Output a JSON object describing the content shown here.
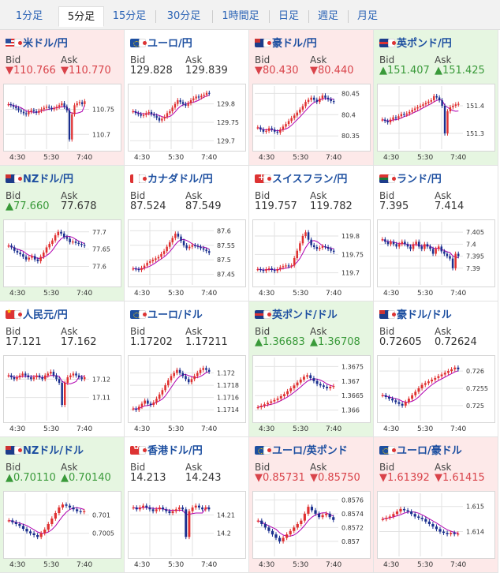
{
  "timeframes": [
    {
      "label": "1分足",
      "active": false
    },
    {
      "label": "5分足",
      "active": true
    },
    {
      "label": "15分足",
      "active": false
    },
    {
      "label": "30分足",
      "active": false
    },
    {
      "label": "1時間足",
      "active": false
    },
    {
      "label": "日足",
      "active": false
    },
    {
      "label": "週足",
      "active": false
    },
    {
      "label": "月足",
      "active": false
    }
  ],
  "labels": {
    "bid": "Bid",
    "ask": "Ask"
  },
  "colors": {
    "up": "#3a9a3a",
    "down": "#d9434a",
    "candle_up": "#e03030",
    "candle_down": "#1a2f8f",
    "ma": "#b000b0"
  },
  "tiles": [
    {
      "pair": "米ドル/円",
      "flag": "us-flag-icon",
      "flag_cls": "us",
      "trend": "down",
      "bid": "▼110.766",
      "ask": "▼110.770",
      "chart_data": {
        "type": "candlestick",
        "y_ticks": [
          "110.75",
          "110.7"
        ],
        "ylim": [
          110.68,
          110.79
        ],
        "x_ticks": [
          "4:30",
          "5:30",
          "7:40"
        ],
        "series": [
          110.76,
          110.758,
          110.755,
          110.752,
          110.748,
          110.745,
          110.742,
          110.74,
          110.745,
          110.748,
          110.746,
          110.743,
          110.747,
          110.75,
          110.753,
          110.755,
          110.753,
          110.75,
          110.752,
          110.755,
          110.758,
          110.762,
          110.755,
          110.748,
          110.69,
          110.74,
          110.758,
          110.762,
          110.764,
          110.76,
          110.766
        ]
      }
    },
    {
      "pair": "ユーロ/円",
      "flag": "eu-flag-icon",
      "flag_cls": "eu",
      "trend": "flat",
      "bid": "129.828",
      "ask": "129.839",
      "chart_data": {
        "type": "candlestick",
        "y_ticks": [
          "129.8",
          "129.75",
          "129.7"
        ],
        "ylim": [
          129.69,
          129.84
        ],
        "x_ticks": [
          "4:30",
          "5:30",
          "7:40"
        ],
        "series": [
          129.78,
          129.775,
          129.772,
          129.768,
          129.77,
          129.775,
          129.778,
          129.772,
          129.768,
          129.762,
          129.755,
          129.76,
          129.765,
          129.775,
          129.78,
          129.79,
          129.8,
          129.81,
          129.805,
          129.8,
          129.795,
          129.802,
          129.81,
          129.815,
          129.82,
          129.818,
          129.822,
          129.825,
          129.83,
          129.828
        ]
      }
    },
    {
      "pair": "豪ドル/円",
      "flag": "au-flag-icon",
      "flag_cls": "au",
      "trend": "down",
      "bid": "▼80.430",
      "ask": "▼80.440",
      "chart_data": {
        "type": "candlestick",
        "y_ticks": [
          "80.45",
          "80.4",
          "80.35"
        ],
        "ylim": [
          80.33,
          80.46
        ],
        "x_ticks": [
          "4:30",
          "5:30",
          "7:40"
        ],
        "series": [
          80.37,
          80.365,
          80.36,
          80.362,
          80.368,
          80.365,
          80.36,
          80.358,
          80.365,
          80.372,
          80.378,
          80.385,
          80.392,
          80.398,
          80.405,
          80.412,
          80.42,
          80.43,
          80.435,
          80.44,
          80.435,
          80.43,
          80.438,
          80.445,
          80.44,
          80.436,
          80.432,
          80.43
        ]
      }
    },
    {
      "pair": "英ポンド/円",
      "flag": "gb-flag-icon",
      "flag_cls": "gb",
      "trend": "up",
      "bid": "▲151.407",
      "ask": "▲151.425",
      "chart_data": {
        "type": "candlestick",
        "y_ticks": [
          "151.4",
          "151.3"
        ],
        "ylim": [
          151.26,
          151.46
        ],
        "x_ticks": [
          "4:30",
          "5:30",
          "7:40"
        ],
        "series": [
          151.35,
          151.345,
          151.34,
          151.35,
          151.358,
          151.355,
          151.362,
          151.37,
          151.368,
          151.372,
          151.378,
          151.385,
          151.39,
          151.395,
          151.4,
          151.405,
          151.41,
          151.415,
          151.42,
          151.435,
          151.43,
          151.42,
          151.4,
          151.3,
          151.38,
          151.395,
          151.4,
          151.405,
          151.407
        ]
      }
    },
    {
      "pair": "NZドル/円",
      "flag": "nz-flag-icon",
      "flag_cls": "nz",
      "trend": "up",
      "bid": "▲77.660",
      "ask": "77.678",
      "chart_data": {
        "type": "candlestick",
        "y_ticks": [
          "77.7",
          "77.65",
          "77.6"
        ],
        "ylim": [
          77.56,
          77.72
        ],
        "x_ticks": [
          "4:30",
          "5:30",
          "7:40"
        ],
        "series": [
          77.66,
          77.655,
          77.645,
          77.64,
          77.635,
          77.628,
          77.62,
          77.625,
          77.63,
          77.62,
          77.615,
          77.628,
          77.64,
          77.655,
          77.665,
          77.675,
          77.69,
          77.7,
          77.695,
          77.685,
          77.68,
          77.67,
          77.672,
          77.668,
          77.665,
          77.662,
          77.66
        ]
      }
    },
    {
      "pair": "カナダドル/円",
      "flag": "ca-flag-icon",
      "flag_cls": "ca",
      "trend": "flat",
      "bid": "87.524",
      "ask": "87.549",
      "chart_data": {
        "type": "candlestick",
        "y_ticks": [
          "87.6",
          "87.55",
          "87.5",
          "87.45"
        ],
        "ylim": [
          87.43,
          87.62
        ],
        "x_ticks": [
          "4:30",
          "5:30",
          "7:40"
        ],
        "series": [
          87.47,
          87.468,
          87.465,
          87.472,
          87.48,
          87.49,
          87.495,
          87.5,
          87.505,
          87.51,
          87.52,
          87.53,
          87.545,
          87.56,
          87.575,
          87.59,
          87.58,
          87.565,
          87.55,
          87.54,
          87.545,
          87.55,
          87.548,
          87.545,
          87.54,
          87.535,
          87.53,
          87.524
        ]
      }
    },
    {
      "pair": "スイスフラン/円",
      "flag": "ch-flag-icon",
      "flag_cls": "ch",
      "trend": "flat",
      "bid": "119.757",
      "ask": "119.782",
      "chart_data": {
        "type": "candlestick",
        "y_ticks": [
          "119.8",
          "119.75",
          "119.7"
        ],
        "ylim": [
          119.68,
          119.83
        ],
        "x_ticks": [
          "4:30",
          "5:30",
          "7:40"
        ],
        "series": [
          119.71,
          119.708,
          119.705,
          119.71,
          119.712,
          119.708,
          119.705,
          119.71,
          119.715,
          119.718,
          119.72,
          119.718,
          119.72,
          119.74,
          119.76,
          119.78,
          119.8,
          119.81,
          119.79,
          119.775,
          119.77,
          119.765,
          119.768,
          119.772,
          119.77,
          119.765,
          119.76,
          119.757
        ]
      }
    },
    {
      "pair": "ランド/円",
      "flag": "za-flag-icon",
      "flag_cls": "za",
      "trend": "flat",
      "bid": "7.395",
      "ask": "7.414",
      "chart_data": {
        "type": "candlestick",
        "y_ticks": [
          "7.405",
          "7.4",
          "7.395",
          "7.39"
        ],
        "ylim": [
          7.385,
          7.408
        ],
        "x_ticks": [
          "4:30",
          "5:30",
          "7:40"
        ],
        "series": [
          7.402,
          7.401,
          7.4,
          7.401,
          7.4,
          7.399,
          7.4,
          7.401,
          7.4,
          7.399,
          7.398,
          7.4,
          7.401,
          7.399,
          7.398,
          7.4,
          7.399,
          7.398,
          7.396,
          7.398,
          7.399,
          7.397,
          7.396,
          7.395,
          7.394,
          7.39,
          7.396,
          7.395
        ]
      }
    },
    {
      "pair": "人民元/円",
      "flag": "cn-flag-icon",
      "flag_cls": "cn",
      "trend": "flat",
      "bid": "17.121",
      "ask": "17.162",
      "chart_data": {
        "type": "candlestick",
        "y_ticks": [
          "17.12",
          "17.11"
        ],
        "ylim": [
          17.1,
          17.13
        ],
        "x_ticks": [
          "4:30",
          "5:30",
          "7:40"
        ],
        "series": [
          17.122,
          17.121,
          17.12,
          17.121,
          17.122,
          17.123,
          17.122,
          17.121,
          17.12,
          17.121,
          17.122,
          17.121,
          17.12,
          17.122,
          17.123,
          17.124,
          17.122,
          17.12,
          17.118,
          17.106,
          17.118,
          17.121,
          17.122,
          17.123,
          17.122,
          17.121,
          17.12,
          17.121
        ]
      }
    },
    {
      "pair": "ユーロ/ドル",
      "flag": "eu-flag-icon",
      "flag_cls": "eu",
      "trend": "flat",
      "bid": "1.17202",
      "ask": "1.17211",
      "chart_data": {
        "type": "candlestick",
        "y_ticks": [
          "1.172",
          "1.1718",
          "1.1716",
          "1.1714"
        ],
        "ylim": [
          1.1713,
          1.1722
        ],
        "x_ticks": [
          "4:30",
          "5:30",
          "7:40"
        ],
        "series": [
          1.17142,
          1.1714,
          1.17145,
          1.1715,
          1.17155,
          1.1715,
          1.17148,
          1.17152,
          1.17158,
          1.17165,
          1.17172,
          1.1718,
          1.17188,
          1.17195,
          1.172,
          1.17205,
          1.172,
          1.17195,
          1.1719,
          1.17185,
          1.1719,
          1.17195,
          1.172,
          1.17205,
          1.17208,
          1.17205,
          1.17202
        ]
      }
    },
    {
      "pair": "英ポンド/ドル",
      "flag": "gb-flag-icon",
      "flag_cls": "gb",
      "trend": "up",
      "bid": "▲1.36683",
      "ask": "▲1.36708",
      "chart_data": {
        "type": "candlestick",
        "y_ticks": [
          "1.3675",
          "1.367",
          "1.3665",
          "1.366"
        ],
        "ylim": [
          1.3658,
          1.3677
        ],
        "x_ticks": [
          "4:30",
          "5:30",
          "7:40"
        ],
        "series": [
          1.3661,
          1.36615,
          1.3662,
          1.36625,
          1.3663,
          1.36635,
          1.3664,
          1.36648,
          1.36655,
          1.36665,
          1.36675,
          1.36685,
          1.36695,
          1.36705,
          1.36715,
          1.3672,
          1.3671,
          1.367,
          1.3669,
          1.36685,
          1.3668,
          1.36675,
          1.3668,
          1.36683
        ]
      }
    },
    {
      "pair": "豪ドル/ドル",
      "flag": "au-flag-icon",
      "flag_cls": "au",
      "trend": "flat",
      "bid": "0.72605",
      "ask": "0.72624",
      "chart_data": {
        "type": "candlestick",
        "y_ticks": [
          "0.726",
          "0.7255",
          "0.725"
        ],
        "ylim": [
          0.7247,
          0.7263
        ],
        "x_ticks": [
          "4:30",
          "5:30",
          "7:40"
        ],
        "series": [
          0.7253,
          0.72525,
          0.7252,
          0.72515,
          0.7251,
          0.72505,
          0.725,
          0.7251,
          0.7252,
          0.7253,
          0.7254,
          0.7255,
          0.7256,
          0.72565,
          0.7257,
          0.72575,
          0.7258,
          0.72585,
          0.7259,
          0.72595,
          0.726,
          0.72605,
          0.7261,
          0.72605
        ]
      }
    },
    {
      "pair": "NZドル/ドル",
      "flag": "nz-flag-icon",
      "flag_cls": "nz",
      "trend": "up",
      "bid": "▲0.70110",
      "ask": "▲0.70140",
      "chart_data": {
        "type": "candlestick",
        "y_ticks": [
          "0.701",
          "0.7005"
        ],
        "ylim": [
          0.7,
          0.7015
        ],
        "x_ticks": [
          "4:30",
          "5:30",
          "7:40"
        ],
        "series": [
          0.70085,
          0.7008,
          0.70075,
          0.7007,
          0.70062,
          0.70055,
          0.7005,
          0.70045,
          0.7004,
          0.7005,
          0.7006,
          0.70075,
          0.7009,
          0.70105,
          0.7012,
          0.70128,
          0.70125,
          0.7012,
          0.70115,
          0.7011,
          0.70108,
          0.7011
        ]
      }
    },
    {
      "pair": "香港ドル/円",
      "flag": "hk-flag-icon",
      "flag_cls": "hk",
      "trend": "flat",
      "bid": "14.213",
      "ask": "14.243",
      "chart_data": {
        "type": "candlestick",
        "y_ticks": [
          "14.21",
          "14.2"
        ],
        "ylim": [
          14.19,
          14.22
        ],
        "x_ticks": [
          "4:30",
          "5:30",
          "7:40"
        ],
        "series": [
          14.214,
          14.213,
          14.214,
          14.215,
          14.214,
          14.213,
          14.212,
          14.213,
          14.214,
          14.213,
          14.212,
          14.211,
          14.212,
          14.213,
          14.214,
          14.213,
          14.198,
          14.212,
          14.214,
          14.215,
          14.214,
          14.213,
          14.214,
          14.213
        ]
      }
    },
    {
      "pair": "ユーロ/英ポンド",
      "flag": "eu-flag-icon",
      "flag_cls": "eu",
      "trend": "down",
      "bid": "▼0.85731",
      "ask": "▼0.85750",
      "chart_data": {
        "type": "candlestick",
        "y_ticks": [
          "0.8576",
          "0.8574",
          "0.8572",
          "0.857"
        ],
        "ylim": [
          0.85685,
          0.85765
        ],
        "x_ticks": [
          "4:30",
          "5:30",
          "7:40"
        ],
        "series": [
          0.8573,
          0.85725,
          0.8572,
          0.85715,
          0.8571,
          0.85705,
          0.857,
          0.85705,
          0.8571,
          0.85715,
          0.8572,
          0.85725,
          0.8573,
          0.8574,
          0.8575,
          0.85745,
          0.8574,
          0.85735,
          0.85738,
          0.8574,
          0.85735,
          0.85731
        ]
      }
    },
    {
      "pair": "ユーロ/豪ドル",
      "flag": "eu-flag-icon",
      "flag_cls": "eu",
      "trend": "down",
      "bid": "▼1.61392",
      "ask": "▼1.61415",
      "chart_data": {
        "type": "candlestick",
        "y_ticks": [
          "1.615",
          "1.614"
        ],
        "ylim": [
          1.6132,
          1.6154
        ],
        "x_ticks": [
          "4:30",
          "5:30",
          "7:40"
        ],
        "series": [
          1.6145,
          1.61455,
          1.6146,
          1.6147,
          1.6148,
          1.6149,
          1.61485,
          1.6148,
          1.6147,
          1.6146,
          1.61455,
          1.6145,
          1.6144,
          1.6143,
          1.6142,
          1.6141,
          1.614,
          1.61395,
          1.6139,
          1.61395,
          1.6139,
          1.61392
        ]
      }
    }
  ]
}
